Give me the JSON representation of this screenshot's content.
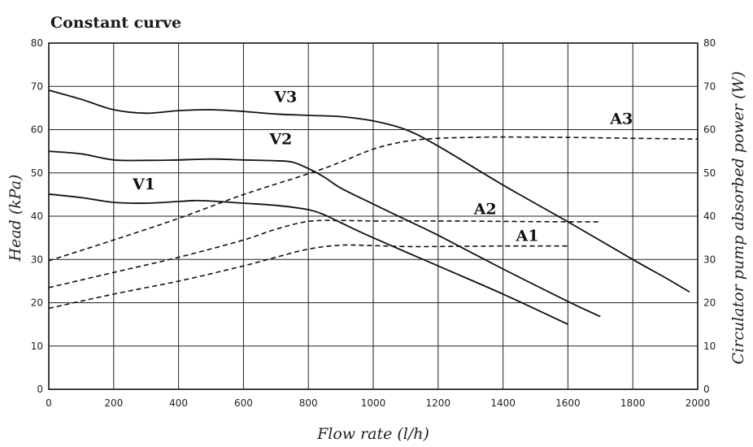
{
  "chart_data": {
    "type": "line",
    "title": "Constant curve",
    "xlabel": "Flow rate (l/h)",
    "ylabel": "Head (kPa)",
    "y2label": "Circulator pump absorbed power (W)",
    "xlim": [
      0,
      2000
    ],
    "ylim": [
      0,
      80
    ],
    "y2lim": [
      0,
      80
    ],
    "xticks": [
      0,
      200,
      400,
      600,
      800,
      1000,
      1200,
      1400,
      1600,
      1800,
      2000
    ],
    "yticks": [
      0,
      10,
      20,
      30,
      40,
      50,
      60,
      70,
      80
    ],
    "grid": true,
    "series": [
      {
        "name": "V3",
        "axis": "left",
        "style": "solid",
        "points": [
          [
            0,
            69.1
          ],
          [
            100,
            67
          ],
          [
            200,
            64.6
          ],
          [
            300,
            63.8
          ],
          [
            400,
            64.4
          ],
          [
            500,
            64.6
          ],
          [
            600,
            64.2
          ],
          [
            700,
            63.6
          ],
          [
            800,
            63.3
          ],
          [
            900,
            63
          ],
          [
            1000,
            62
          ],
          [
            1100,
            60
          ],
          [
            1200,
            56.2
          ],
          [
            1400,
            47.2
          ],
          [
            1600,
            38.7
          ],
          [
            1800,
            30
          ],
          [
            1900,
            25.8
          ],
          [
            1975,
            22.5
          ]
        ]
      },
      {
        "name": "V2",
        "axis": "left",
        "style": "solid",
        "points": [
          [
            0,
            55
          ],
          [
            100,
            54.4
          ],
          [
            200,
            53
          ],
          [
            300,
            52.9
          ],
          [
            400,
            53
          ],
          [
            500,
            53.2
          ],
          [
            600,
            53
          ],
          [
            700,
            52.8
          ],
          [
            750,
            52.5
          ],
          [
            800,
            51
          ],
          [
            850,
            49
          ],
          [
            900,
            46.5
          ],
          [
            1000,
            42.8
          ],
          [
            1100,
            39.2
          ],
          [
            1200,
            35.6
          ],
          [
            1400,
            27.8
          ],
          [
            1600,
            20.3
          ],
          [
            1700,
            16.8
          ]
        ]
      },
      {
        "name": "V1",
        "axis": "left",
        "style": "solid",
        "points": [
          [
            0,
            45.1
          ],
          [
            100,
            44.3
          ],
          [
            200,
            43.2
          ],
          [
            300,
            43
          ],
          [
            400,
            43.4
          ],
          [
            450,
            43.6
          ],
          [
            500,
            43.5
          ],
          [
            600,
            43
          ],
          [
            700,
            42.5
          ],
          [
            800,
            41.5
          ],
          [
            850,
            40.3
          ],
          [
            900,
            38.5
          ],
          [
            1000,
            35
          ],
          [
            1200,
            28.5
          ],
          [
            1400,
            22
          ],
          [
            1600,
            15
          ]
        ]
      },
      {
        "name": "A3",
        "axis": "right",
        "style": "dashed",
        "points": [
          [
            0,
            29.7
          ],
          [
            200,
            34.5
          ],
          [
            400,
            39.5
          ],
          [
            600,
            45
          ],
          [
            800,
            49.8
          ],
          [
            900,
            52.5
          ],
          [
            1000,
            55.5
          ],
          [
            1100,
            57.3
          ],
          [
            1200,
            58
          ],
          [
            1300,
            58.2
          ],
          [
            1400,
            58.3
          ],
          [
            1600,
            58.2
          ],
          [
            1800,
            58
          ],
          [
            2000,
            57.8
          ]
        ]
      },
      {
        "name": "A2",
        "axis": "right",
        "style": "dashed",
        "points": [
          [
            0,
            23.5
          ],
          [
            200,
            27
          ],
          [
            400,
            30.5
          ],
          [
            600,
            34.5
          ],
          [
            700,
            37
          ],
          [
            800,
            38.8
          ],
          [
            900,
            39
          ],
          [
            1000,
            38.9
          ],
          [
            1200,
            38.9
          ],
          [
            1400,
            38.8
          ],
          [
            1600,
            38.7
          ],
          [
            1700,
            38.7
          ]
        ]
      },
      {
        "name": "A1",
        "axis": "right",
        "style": "dashed",
        "points": [
          [
            0,
            18.7
          ],
          [
            200,
            22
          ],
          [
            400,
            25
          ],
          [
            600,
            28.5
          ],
          [
            700,
            30.5
          ],
          [
            800,
            32.4
          ],
          [
            900,
            33.3
          ],
          [
            1000,
            33.2
          ],
          [
            1100,
            33
          ],
          [
            1200,
            33
          ],
          [
            1400,
            33.1
          ],
          [
            1600,
            33.1
          ]
        ]
      }
    ],
    "series_labels": [
      {
        "name": "V3",
        "x": 695,
        "y": 66.4
      },
      {
        "name": "V2",
        "x": 680,
        "y": 56.6
      },
      {
        "name": "V1",
        "x": 258,
        "y": 46.2
      },
      {
        "name": "A3",
        "x": 1730,
        "y": 61.3
      },
      {
        "name": "A2",
        "x": 1310,
        "y": 40.5
      },
      {
        "name": "A1",
        "x": 1440,
        "y": 34.3
      }
    ]
  }
}
